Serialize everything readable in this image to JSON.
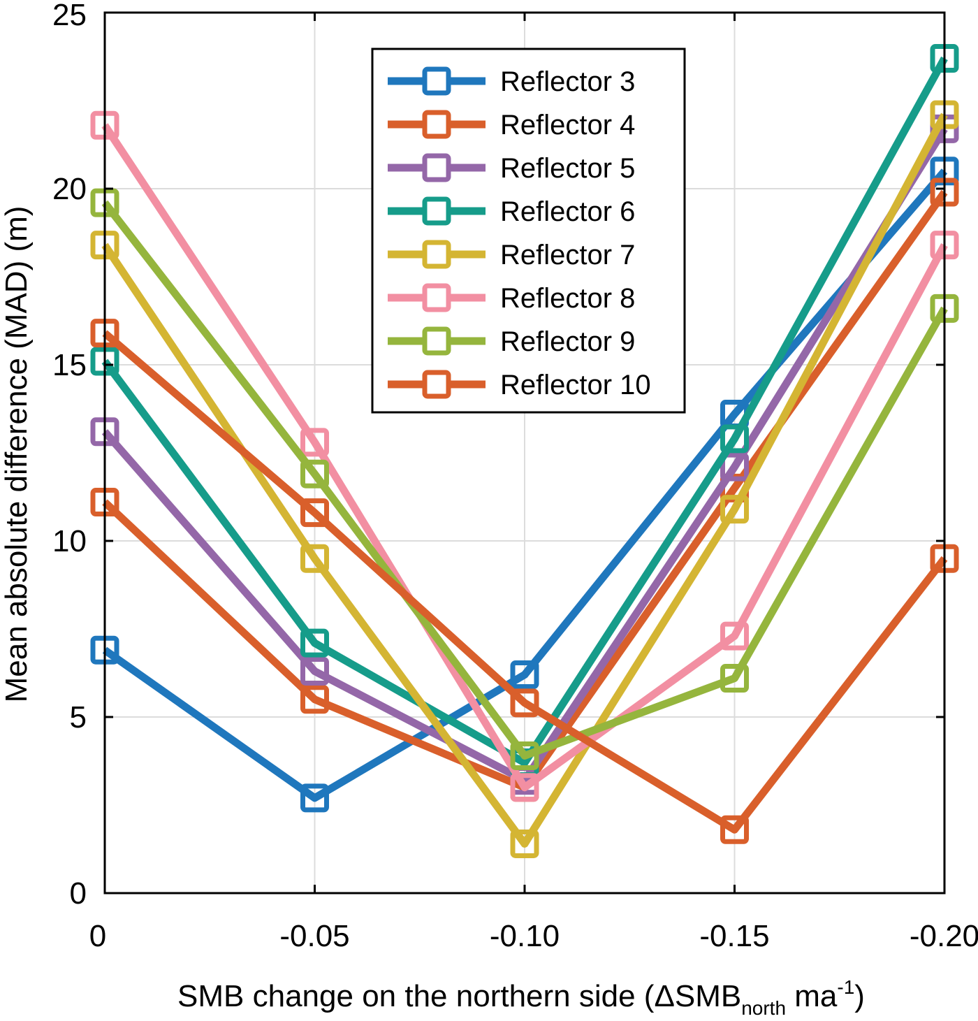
{
  "chart_data": {
    "type": "line",
    "title": "",
    "xlabel": {
      "main": "SMB change on the northern side  (ΔSMB",
      "subscript": "north",
      "unit": " ma",
      "superscript": "-1",
      "close": ")"
    },
    "ylabel": "Mean absolute difference (MAD) (m)",
    "x": [
      0,
      -0.05,
      -0.1,
      -0.15,
      -0.2
    ],
    "x_tick_labels": [
      "0",
      "-0.05",
      "-0.10",
      "-0.15",
      "-0.20"
    ],
    "y_ticks": [
      0,
      5,
      10,
      15,
      20,
      25
    ],
    "y_tick_labels": [
      "0",
      "5",
      "10",
      "15",
      "20",
      "25"
    ],
    "ylim": [
      0,
      25
    ],
    "xlim": [
      0,
      -0.2
    ],
    "grid": true,
    "legend_position": "top-right",
    "marker": "square",
    "series": [
      {
        "name": "Reflector 3",
        "color": "#1f77bd",
        "values": [
          6.9,
          2.7,
          6.2,
          13.6,
          20.5
        ]
      },
      {
        "name": "Reflector 4",
        "color": "#d95f2b",
        "values": [
          11.1,
          5.5,
          3.0,
          11.5,
          19.9
        ]
      },
      {
        "name": "Reflector 5",
        "color": "#9467a8",
        "values": [
          13.1,
          6.3,
          3.2,
          12.1,
          21.7
        ]
      },
      {
        "name": "Reflector 6",
        "color": "#169c8a",
        "values": [
          15.1,
          7.1,
          3.7,
          12.9,
          23.7
        ]
      },
      {
        "name": "Reflector 7",
        "color": "#d4b533",
        "values": [
          18.4,
          9.5,
          1.4,
          10.9,
          22.1
        ]
      },
      {
        "name": "Reflector 8",
        "color": "#f28fa2",
        "values": [
          21.8,
          12.8,
          3.0,
          7.3,
          18.4
        ]
      },
      {
        "name": "Reflector 9",
        "color": "#95b53d",
        "values": [
          19.6,
          11.9,
          3.9,
          6.1,
          16.6
        ]
      },
      {
        "name": "Reflector 10",
        "color": "#d95f2b",
        "values": [
          15.9,
          10.8,
          5.4,
          1.8,
          9.5
        ]
      }
    ]
  }
}
